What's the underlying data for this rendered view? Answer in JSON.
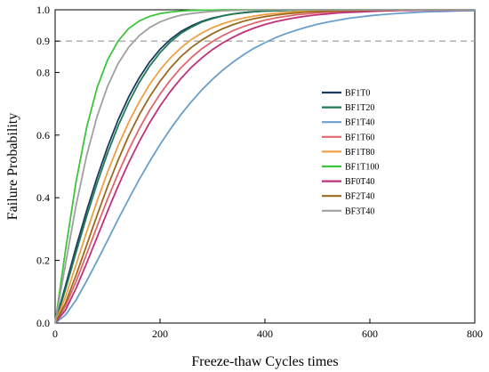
{
  "chart_data": {
    "type": "line",
    "title": "",
    "xlabel": "Freeze-thaw Cycles times",
    "ylabel": "Failure Probability",
    "xlim": [
      0,
      800
    ],
    "ylim": [
      0,
      1
    ],
    "xticks": [
      0,
      200,
      400,
      600,
      800
    ],
    "yticks": [
      0.0,
      0.2,
      0.4,
      0.6,
      0.8,
      0.9,
      1.0
    ],
    "ytick_labels": [
      "0.0",
      "0.2",
      "0.4",
      "0.6",
      "0.8",
      "0.9",
      "1.0"
    ],
    "reference_line": {
      "y": 0.9,
      "style": "dashed",
      "color": "#aaaaaa"
    },
    "legend_position": "right-center",
    "x": [
      0,
      20,
      40,
      60,
      80,
      100,
      120,
      140,
      160,
      180,
      200,
      220,
      240,
      260,
      280,
      300,
      320,
      340,
      360,
      380,
      400,
      420,
      440,
      460,
      480,
      500,
      520,
      540,
      560,
      580,
      600,
      620,
      640,
      660,
      680,
      700,
      720,
      740,
      760,
      780,
      800
    ],
    "series": [
      {
        "name": "BF1T0",
        "color": "#1b3a5c",
        "values": [
          0,
          0.12,
          0.243,
          0.358,
          0.465,
          0.562,
          0.648,
          0.721,
          0.782,
          0.833,
          0.874,
          0.906,
          0.931,
          0.949,
          0.963,
          0.974,
          0.981,
          0.987,
          0.991,
          0.994,
          0.996,
          0.997,
          0.998,
          0.999,
          0.999,
          0.999,
          1,
          1,
          1,
          1,
          1,
          1,
          1,
          1,
          1,
          1,
          1,
          1,
          1,
          1,
          1
        ]
      },
      {
        "name": "BF1T20",
        "color": "#1f7a55",
        "values": [
          0,
          0.109,
          0.226,
          0.34,
          0.446,
          0.543,
          0.629,
          0.703,
          0.767,
          0.82,
          0.863,
          0.898,
          0.925,
          0.945,
          0.961,
          0.972,
          0.981,
          0.987,
          0.991,
          0.994,
          0.996,
          0.997,
          0.998,
          0.999,
          0.999,
          1,
          1,
          1,
          1,
          1,
          1,
          1,
          1,
          1,
          1,
          1,
          1,
          1,
          1,
          1,
          1
        ]
      },
      {
        "name": "BF1T40",
        "color": "#6a9ecb",
        "values": [
          0,
          0.026,
          0.074,
          0.134,
          0.198,
          0.264,
          0.331,
          0.395,
          0.457,
          0.515,
          0.57,
          0.62,
          0.666,
          0.707,
          0.745,
          0.778,
          0.808,
          0.834,
          0.857,
          0.878,
          0.895,
          0.911,
          0.924,
          0.935,
          0.945,
          0.954,
          0.961,
          0.967,
          0.973,
          0.977,
          0.981,
          0.984,
          0.987,
          0.989,
          0.991,
          0.993,
          0.994,
          0.995,
          0.996,
          0.997,
          0.997
        ]
      },
      {
        "name": "BF1T60",
        "color": "#e0666e",
        "values": [
          0,
          0.055,
          0.133,
          0.22,
          0.309,
          0.396,
          0.477,
          0.552,
          0.619,
          0.679,
          0.731,
          0.776,
          0.815,
          0.848,
          0.876,
          0.899,
          0.918,
          0.934,
          0.947,
          0.958,
          0.967,
          0.974,
          0.979,
          0.984,
          0.987,
          0.99,
          0.992,
          0.994,
          0.995,
          0.996,
          0.997,
          0.998,
          0.998,
          0.999,
          0.999,
          0.999,
          0.999,
          1,
          1,
          1,
          1
        ]
      },
      {
        "name": "BF1T80",
        "color": "#f0a040",
        "values": [
          0,
          0.085,
          0.187,
          0.29,
          0.389,
          0.482,
          0.566,
          0.64,
          0.705,
          0.761,
          0.808,
          0.847,
          0.879,
          0.905,
          0.926,
          0.943,
          0.956,
          0.966,
          0.974,
          0.98,
          0.985,
          0.989,
          0.991,
          0.994,
          0.995,
          0.996,
          0.997,
          0.998,
          0.999,
          0.999,
          0.999,
          0.999,
          1,
          1,
          1,
          1,
          1,
          1,
          1,
          1,
          1
        ]
      },
      {
        "name": "BF1T100",
        "color": "#3dc43d",
        "values": [
          0,
          0.235,
          0.452,
          0.624,
          0.751,
          0.84,
          0.9,
          0.94,
          0.964,
          0.979,
          0.988,
          0.993,
          0.996,
          0.998,
          0.999,
          0.999,
          1,
          1,
          1,
          1,
          1,
          1,
          1,
          1,
          1,
          1,
          1,
          1,
          1,
          1,
          1,
          1,
          1,
          1,
          1,
          1,
          1,
          1,
          1,
          1,
          1
        ]
      },
      {
        "name": "BF0T40",
        "color": "#c0307a",
        "values": [
          0,
          0.042,
          0.111,
          0.191,
          0.274,
          0.357,
          0.437,
          0.511,
          0.578,
          0.639,
          0.693,
          0.74,
          0.781,
          0.817,
          0.847,
          0.873,
          0.895,
          0.913,
          0.929,
          0.942,
          0.953,
          0.962,
          0.969,
          0.975,
          0.98,
          0.984,
          0.987,
          0.99,
          0.992,
          0.993,
          0.995,
          0.996,
          0.997,
          0.998,
          0.998,
          0.999,
          0.999,
          0.999,
          0.999,
          0.999,
          1
        ]
      },
      {
        "name": "BF2T40",
        "color": "#9a6a1f",
        "values": [
          0,
          0.065,
          0.153,
          0.248,
          0.344,
          0.436,
          0.52,
          0.597,
          0.664,
          0.722,
          0.772,
          0.815,
          0.851,
          0.88,
          0.904,
          0.924,
          0.94,
          0.953,
          0.964,
          0.972,
          0.978,
          0.983,
          0.987,
          0.99,
          0.993,
          0.994,
          0.996,
          0.997,
          0.998,
          0.998,
          0.999,
          0.999,
          0.999,
          1,
          1,
          1,
          1,
          1,
          1,
          1,
          1
        ]
      },
      {
        "name": "BF3T40",
        "color": "#a0a0a0",
        "values": [
          0,
          0.19,
          0.376,
          0.534,
          0.66,
          0.756,
          0.828,
          0.88,
          0.917,
          0.943,
          0.961,
          0.974,
          0.983,
          0.988,
          0.992,
          0.995,
          0.997,
          0.998,
          0.999,
          0.999,
          1,
          1,
          1,
          1,
          1,
          1,
          1,
          1,
          1,
          1,
          1,
          1,
          1,
          1,
          1,
          1,
          1,
          1,
          1,
          1,
          1
        ]
      }
    ]
  }
}
